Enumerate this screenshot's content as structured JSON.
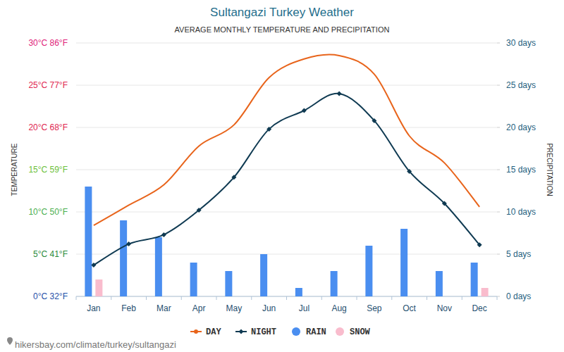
{
  "chart_data": {
    "type": "line",
    "title": "Sultangazi Turkey Weather",
    "subtitle": "AVERAGE MONTHLY TEMPERATURE AND PRECIPITATION",
    "ylabel": "TEMPERATURE",
    "y2label": "PRECIPITATION",
    "categories": [
      "Jan",
      "Feb",
      "Mar",
      "Apr",
      "May",
      "Jun",
      "Jul",
      "Aug",
      "Sep",
      "Oct",
      "Nov",
      "Dec"
    ],
    "series": [
      {
        "name": "DAY",
        "type": "line",
        "color": "#e8641b",
        "marker": "none",
        "values": [
          8.4,
          10.8,
          13.2,
          17.8,
          20.3,
          25.9,
          28.1,
          28.5,
          26.3,
          19.0,
          15.8,
          10.6
        ]
      },
      {
        "name": "NIGHT",
        "type": "line",
        "color": "#0f3a52",
        "marker": "diamond",
        "values": [
          3.7,
          6.2,
          7.3,
          10.2,
          14.1,
          19.8,
          22.0,
          24.0,
          20.8,
          14.8,
          11.0,
          6.1
        ]
      },
      {
        "name": "RAIN",
        "type": "bar",
        "axis": "y2",
        "color": "#4a8ef0",
        "values": [
          13,
          9,
          7,
          4,
          3,
          5,
          1,
          3,
          6,
          8,
          3,
          4
        ]
      },
      {
        "name": "SNOW",
        "type": "bar",
        "axis": "y2",
        "color": "#f9bccd",
        "values": [
          2,
          0,
          0,
          0,
          0,
          0,
          0,
          0,
          0,
          0,
          0,
          1
        ]
      }
    ],
    "ylim": [
      0,
      30
    ],
    "yticks": [
      {
        "value": 0,
        "label": "0°C 32°F"
      },
      {
        "value": 5,
        "label": "5°C 41°F"
      },
      {
        "value": 10,
        "label": "10°C 50°F"
      },
      {
        "value": 15,
        "label": "15°C 59°F"
      },
      {
        "value": 20,
        "label": "20°C 68°F"
      },
      {
        "value": 25,
        "label": "25°C 77°F"
      },
      {
        "value": 30,
        "label": "30°C 86°F"
      }
    ],
    "y2lim": [
      0,
      30
    ],
    "y2ticks": [
      {
        "value": 0,
        "label": "0 days"
      },
      {
        "value": 5,
        "label": "5 days"
      },
      {
        "value": 10,
        "label": "10 days"
      },
      {
        "value": 15,
        "label": "15 days"
      },
      {
        "value": 20,
        "label": "20 days"
      },
      {
        "value": 25,
        "label": "25 days"
      },
      {
        "value": 30,
        "label": "30 days"
      }
    ],
    "grid": true,
    "legend": "bottom",
    "footer": "hikersbay.com/climate/turkey/sultangazi"
  }
}
